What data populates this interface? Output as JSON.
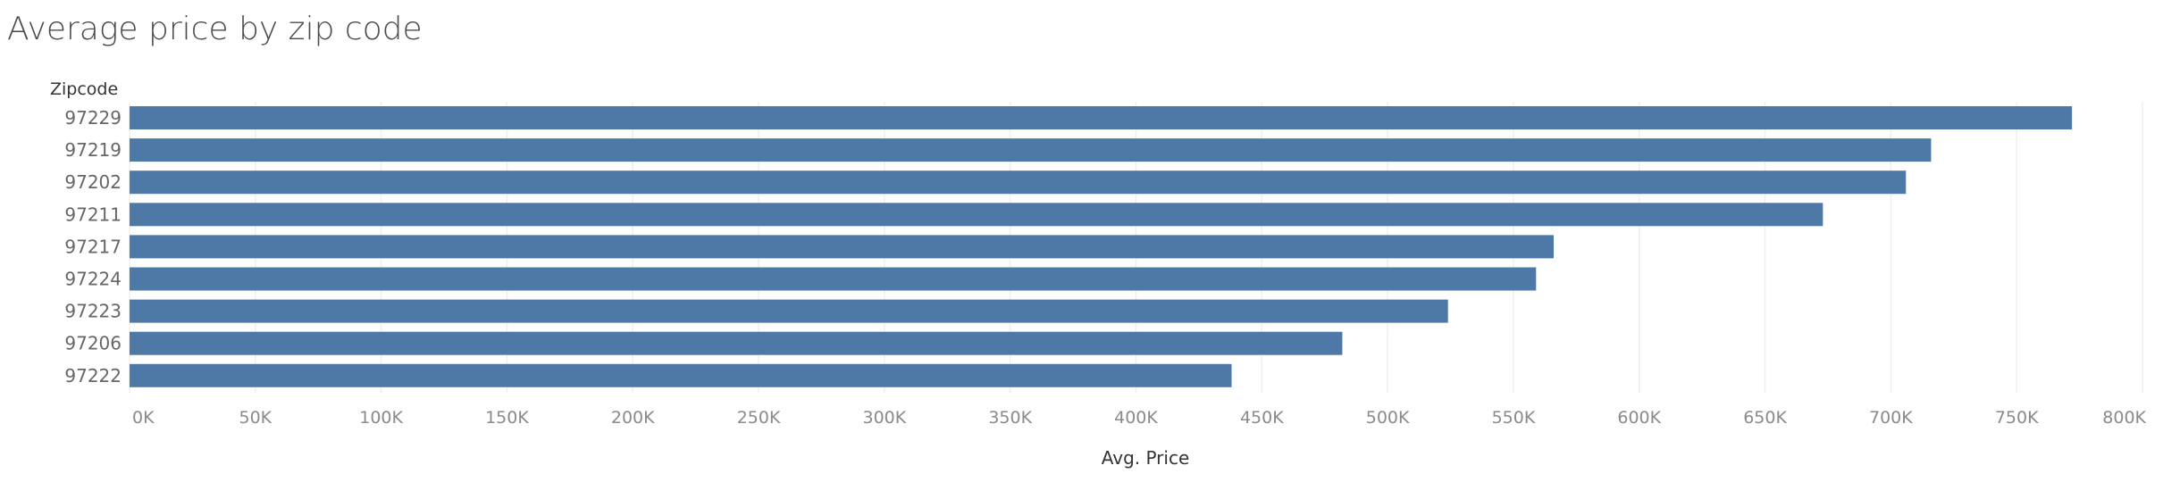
{
  "chart_data": {
    "type": "bar",
    "orientation": "horizontal",
    "title": "Average price by zip code",
    "category_header": "Zipcode",
    "xlabel": "Avg. Price",
    "ylabel": "",
    "categories": [
      "97229",
      "97219",
      "97202",
      "97211",
      "97217",
      "97224",
      "97223",
      "97206",
      "97222"
    ],
    "values": [
      772000,
      716000,
      706000,
      673000,
      566000,
      559000,
      524000,
      482000,
      438000
    ],
    "xlim": [
      0,
      800000
    ],
    "x_ticks": [
      0,
      50000,
      100000,
      150000,
      200000,
      250000,
      300000,
      350000,
      400000,
      450000,
      500000,
      550000,
      600000,
      650000,
      700000,
      750000,
      800000
    ],
    "x_tick_labels": [
      "0K",
      "50K",
      "100K",
      "150K",
      "200K",
      "250K",
      "300K",
      "350K",
      "400K",
      "450K",
      "500K",
      "550K",
      "600K",
      "650K",
      "700K",
      "750K",
      "800K"
    ],
    "grid": "vertical",
    "bar_color": "#4e79a7",
    "grid_color": "#efefef"
  }
}
